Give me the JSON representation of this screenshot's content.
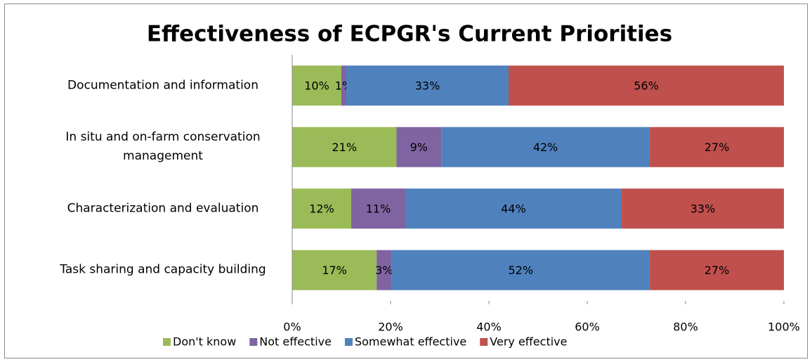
{
  "chart_data": {
    "type": "bar",
    "orientation": "horizontal",
    "stacking": "percent",
    "title": "Effectiveness of ECPGR's Current Priorities",
    "categories": [
      "Documentation and information",
      "In situ and on-farm conservation management",
      "Characterization and evaluation",
      "Task sharing and capacity building"
    ],
    "series": [
      {
        "name": "Don't know",
        "color": "#9bbb59",
        "values": [
          10,
          21,
          12,
          17
        ],
        "value_labels": [
          "10%",
          "21%",
          "12%",
          "17%"
        ]
      },
      {
        "name": "Not effective",
        "color": "#8064a2",
        "values": [
          1,
          9,
          11,
          3
        ],
        "value_labels": [
          "1%",
          "9%",
          "11%",
          "3%"
        ]
      },
      {
        "name": "Somewhat effective",
        "color": "#4f81bd",
        "values": [
          33,
          42,
          44,
          52
        ],
        "value_labels": [
          "33%",
          "42%",
          "44%",
          "52%"
        ]
      },
      {
        "name": "Very effective",
        "color": "#c0504d",
        "values": [
          56,
          27,
          33,
          27
        ],
        "value_labels": [
          "56%",
          "27%",
          "33%",
          "27%"
        ]
      }
    ],
    "xlim": [
      0,
      100
    ],
    "xticks": [
      {
        "value": 0,
        "label": "0%"
      },
      {
        "value": 20,
        "label": "20%"
      },
      {
        "value": 40,
        "label": "40%"
      },
      {
        "value": 60,
        "label": "60%"
      },
      {
        "value": 80,
        "label": "80%"
      },
      {
        "value": 100,
        "label": "100%"
      }
    ],
    "legend": "bottom"
  }
}
